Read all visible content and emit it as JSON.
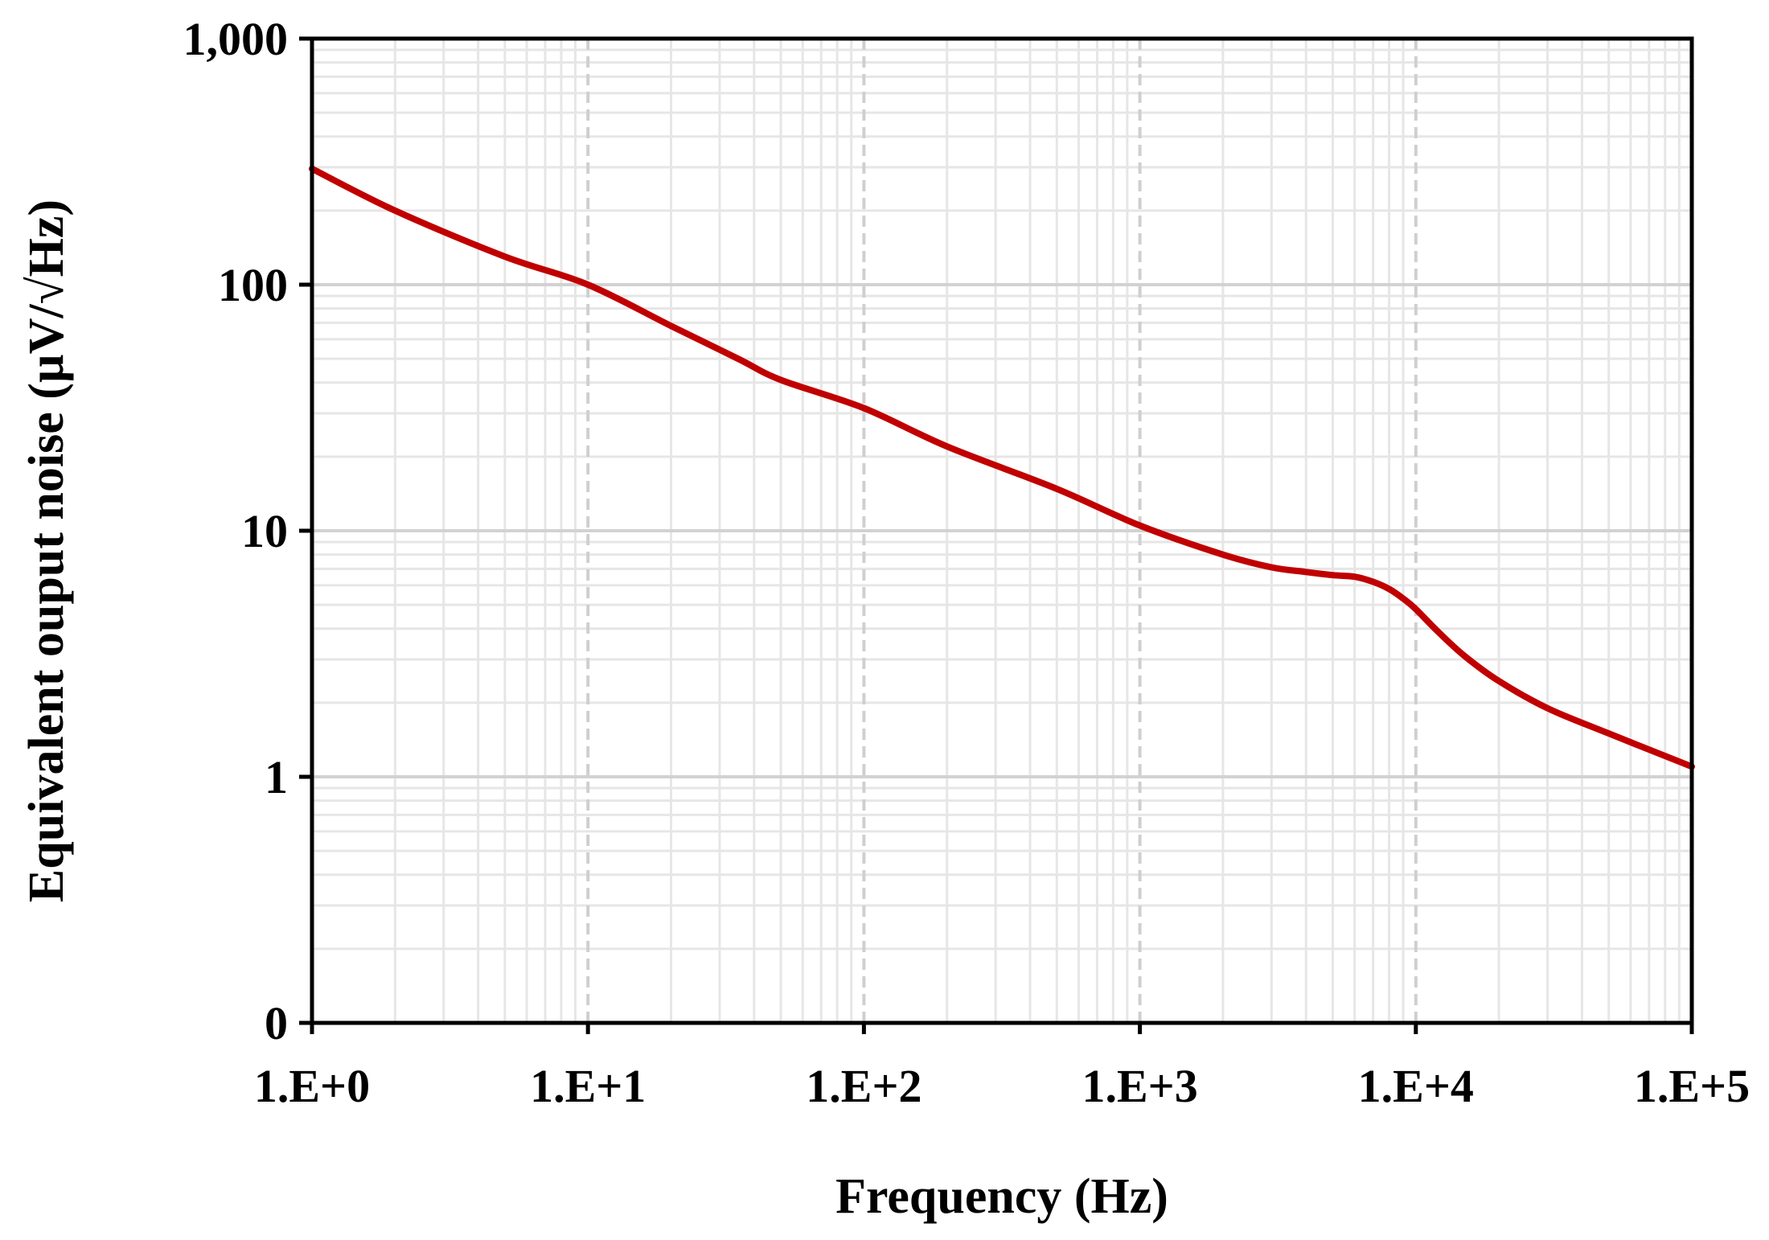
{
  "chart_data": {
    "type": "line",
    "xlabel": "Frequency (Hz)",
    "ylabel": "Equivalent ouput noise (µV/√Hz)",
    "x_scale": "log",
    "y_scale": "log",
    "xlim": [
      1,
      100000
    ],
    "ylim": [
      0.1,
      1000
    ],
    "x_ticks": [
      {
        "value": 1,
        "label": "1.E+0"
      },
      {
        "value": 10,
        "label": "1.E+1"
      },
      {
        "value": 100,
        "label": "1.E+2"
      },
      {
        "value": 1000,
        "label": "1.E+3"
      },
      {
        "value": 10000,
        "label": "1.E+4"
      },
      {
        "value": 100000,
        "label": "1.E+5"
      }
    ],
    "y_ticks": [
      {
        "value": 0.1,
        "label": "0"
      },
      {
        "value": 1,
        "label": "1"
      },
      {
        "value": 10,
        "label": "10"
      },
      {
        "value": 100,
        "label": "100"
      },
      {
        "value": 1000,
        "label": "1,000"
      }
    ],
    "grid": true,
    "legend": "none",
    "series": [
      {
        "color": "#C00000",
        "x": [
          1,
          2,
          5,
          10,
          20,
          35,
          50,
          100,
          200,
          500,
          1000,
          2000,
          3000,
          4000,
          5000,
          6000,
          7000,
          8000,
          9000,
          10000,
          12000,
          15000,
          20000,
          30000,
          50000,
          100000
        ],
        "y": [
          296,
          200,
          130,
          100,
          68,
          50,
          41,
          31.5,
          22,
          14.8,
          10.5,
          8.0,
          7.1,
          6.8,
          6.6,
          6.5,
          6.2,
          5.8,
          5.3,
          4.8,
          3.9,
          3.1,
          2.45,
          1.9,
          1.5,
          1.1
        ]
      }
    ]
  }
}
